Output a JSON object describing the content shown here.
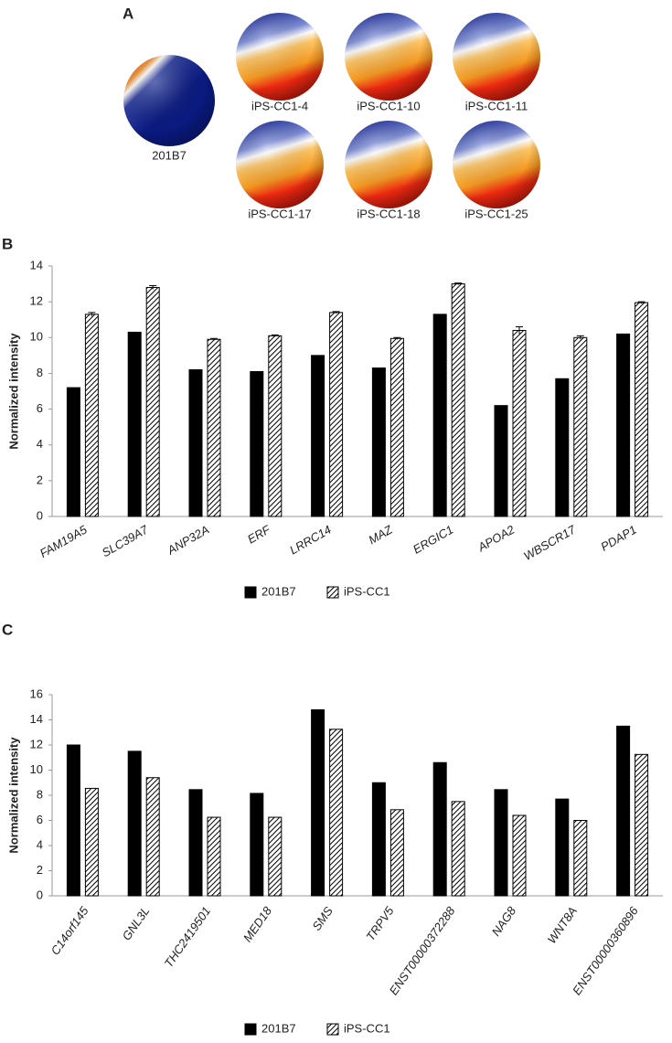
{
  "panel_a": {
    "panel": "A",
    "spheres": [
      "201B7",
      "iPS-CC1-4",
      "iPS-CC1-10",
      "iPS-CC1-11",
      "iPS-CC1-17",
      "iPS-CC1-18",
      "iPS-CC1-25"
    ]
  },
  "chart_data": [
    {
      "type": "bar",
      "panel": "B",
      "y_label": "Normalized intensity",
      "categories": [
        "FAM19A5",
        "SLC39A7",
        "ANP32A",
        "ERF",
        "LRRC14",
        "MAZ",
        "ERGIC1",
        "APOA2",
        "WBSCR17",
        "PDAP1"
      ],
      "series": [
        {
          "name": "201B7",
          "color": "#000000",
          "values": [
            7.2,
            10.3,
            8.2,
            8.1,
            9.0,
            8.3,
            11.3,
            6.2,
            7.7,
            10.2
          ]
        },
        {
          "name": "iPS-CC1",
          "color": "#ffffff",
          "pattern": "hatch",
          "values": [
            11.3,
            12.8,
            9.9,
            10.1,
            11.4,
            9.95,
            13.0,
            10.4,
            10.0,
            11.95
          ],
          "errors": [
            0.1,
            0.1,
            0.05,
            0.05,
            0.05,
            0.05,
            0.05,
            0.2,
            0.1,
            0.05
          ]
        }
      ],
      "ylim": [
        0,
        14
      ],
      "yticks": [
        0,
        2,
        4,
        6,
        8,
        10,
        12,
        14
      ],
      "grid": false,
      "legend": "bottom"
    },
    {
      "type": "bar",
      "panel": "C",
      "y_label": "Normalized intensity",
      "categories": [
        "C14orf145",
        "GNL3L",
        "THC2419501",
        "MED18",
        "SMS",
        "TRPV5",
        "ENST00000372288",
        "NAG8",
        "WNT8A",
        "ENST00000360896"
      ],
      "series": [
        {
          "name": "201B7",
          "color": "#000000",
          "values": [
            12.0,
            11.5,
            8.45,
            8.15,
            14.8,
            9.0,
            10.6,
            8.45,
            7.7,
            13.5
          ]
        },
        {
          "name": "iPS-CC1",
          "color": "#ffffff",
          "pattern": "hatch",
          "values": [
            8.55,
            9.4,
            6.25,
            6.25,
            13.25,
            6.85,
            7.5,
            6.4,
            6.0,
            11.25
          ]
        }
      ],
      "ylim": [
        0,
        16
      ],
      "yticks": [
        0,
        2,
        4,
        6,
        8,
        10,
        12,
        14,
        16
      ],
      "grid": false,
      "legend": "bottom"
    }
  ]
}
